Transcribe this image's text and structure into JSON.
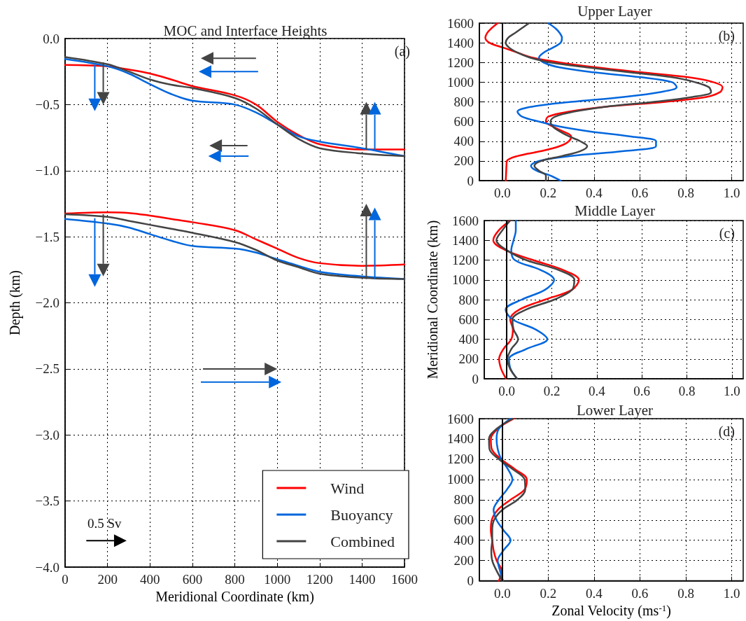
{
  "chart_data": [
    {
      "type": "line",
      "title": "MOC and Interface Heights",
      "xlabel": "Meridional Coordinate (km)",
      "ylabel": "Depth (km)",
      "annotations": [
        "(a)",
        "0.5 Sv"
      ],
      "x": [
        0,
        200,
        300,
        400,
        500,
        600,
        800,
        900,
        1000,
        1100,
        1200,
        1400,
        1600
      ],
      "series": [
        {
          "name": "Wind",
          "color": "#ff0000",
          "values": [
            -0.2,
            -0.21,
            -0.235,
            -0.265,
            -0.31,
            -0.36,
            -0.43,
            -0.5,
            -0.63,
            -0.73,
            -0.8,
            -0.84,
            -0.84
          ]
        },
        {
          "name": "Buoyancy",
          "color": "#0066dd",
          "values": [
            -0.155,
            -0.21,
            -0.265,
            -0.345,
            -0.42,
            -0.47,
            -0.5,
            -0.56,
            -0.65,
            -0.74,
            -0.78,
            -0.83,
            -0.89
          ]
        },
        {
          "name": "Combined",
          "color": "#444444",
          "values": [
            -0.14,
            -0.195,
            -0.25,
            -0.31,
            -0.35,
            -0.375,
            -0.45,
            -0.53,
            -0.65,
            -0.76,
            -0.83,
            -0.87,
            -0.89
          ]
        },
        {
          "color": "#ff0000",
          "values": [
            -1.325,
            -1.315,
            -1.32,
            -1.34,
            -1.365,
            -1.39,
            -1.45,
            -1.52,
            -1.59,
            -1.66,
            -1.7,
            -1.72,
            -1.71
          ]
        },
        {
          "color": "#0066dd",
          "values": [
            -1.365,
            -1.4,
            -1.43,
            -1.48,
            -1.53,
            -1.57,
            -1.59,
            -1.62,
            -1.67,
            -1.72,
            -1.765,
            -1.8,
            -1.82
          ]
        },
        {
          "color": "#444444",
          "values": [
            -1.33,
            -1.35,
            -1.38,
            -1.41,
            -1.44,
            -1.47,
            -1.54,
            -1.6,
            -1.68,
            -1.73,
            -1.78,
            -1.81,
            -1.82
          ]
        }
      ],
      "xlim": [
        0,
        1600
      ],
      "xticks": [
        0,
        200,
        400,
        600,
        800,
        1000,
        1200,
        1400,
        1600
      ],
      "ylim": [
        -4,
        0
      ],
      "yticks": [
        {
          "value": -4,
          "label": "−4.0"
        },
        {
          "value": -3.5,
          "label": "−3.5"
        },
        {
          "value": -3,
          "label": "−3.0"
        },
        {
          "value": -2.5,
          "label": "−2.5"
        },
        {
          "value": -2,
          "label": "−2.0"
        },
        {
          "value": -1.5,
          "label": "−1.5"
        },
        {
          "value": -1,
          "label": "−1.0"
        },
        {
          "value": -0.5,
          "label": "−0.5"
        },
        {
          "value": 0,
          "label": "0.0"
        }
      ],
      "grid": true,
      "legend": "bottom right",
      "marker": "none",
      "line_style": "solid"
    },
    {
      "type": "line",
      "title": "Upper Layer",
      "annotations": [
        "(b)"
      ],
      "series": [
        {
          "color": "#ff0000",
          "x": [
            0.015,
            0.016,
            0.017,
            0.018,
            0.02,
            0.066,
            0.17,
            0.25,
            0.29,
            0.3,
            0.264,
            0.22,
            0.19,
            0.2,
            0.29,
            0.45,
            0.71,
            0.89,
            0.95,
            0.96,
            0.92,
            0.81,
            0.605,
            0.41,
            0.25,
            0.13,
            0.066,
            0.005,
            -0.056,
            -0.074,
            -0.066,
            -0.046,
            -0.02
          ],
          "values": [
            0,
            50,
            100,
            150,
            200,
            250,
            300,
            350,
            400,
            450,
            500,
            550,
            600,
            650,
            700,
            750,
            800,
            850,
            900,
            950,
            1000,
            1050,
            1100,
            1150,
            1200,
            1250,
            1300,
            1350,
            1400,
            1450,
            1500,
            1550,
            1600
          ]
        },
        {
          "color": "#0066dd",
          "x": [
            0.254,
            0.21,
            0.15,
            0.125,
            0.16,
            0.3,
            0.53,
            0.67,
            0.67,
            0.555,
            0.38,
            0.25,
            0.16,
            0.086,
            0.066,
            0.127,
            0.3,
            0.53,
            0.69,
            0.76,
            0.74,
            0.605,
            0.4,
            0.25,
            0.18,
            0.16,
            0.18,
            0.22,
            0.254,
            0.26,
            0.25,
            0.23,
            0.2
          ],
          "values": [
            0,
            50,
            100,
            150,
            200,
            250,
            300,
            350,
            400,
            450,
            500,
            550,
            600,
            650,
            700,
            750,
            800,
            850,
            900,
            950,
            1000,
            1050,
            1100,
            1150,
            1200,
            1250,
            1300,
            1350,
            1400,
            1450,
            1500,
            1550,
            1600
          ]
        },
        {
          "color": "#444444",
          "x": [
            0.19,
            0.19,
            0.16,
            0.14,
            0.17,
            0.26,
            0.34,
            0.37,
            0.34,
            0.29,
            0.25,
            0.22,
            0.21,
            0.23,
            0.31,
            0.45,
            0.66,
            0.83,
            0.91,
            0.9,
            0.84,
            0.74,
            0.555,
            0.37,
            0.21,
            0.12,
            0.066,
            0.03,
            0.015,
            0.025,
            0.056,
            0.086,
            0.117
          ],
          "values": [
            0,
            50,
            100,
            150,
            200,
            250,
            300,
            350,
            400,
            450,
            500,
            550,
            600,
            650,
            700,
            750,
            800,
            850,
            900,
            950,
            1000,
            1050,
            1100,
            1150,
            1200,
            1250,
            1300,
            1350,
            1400,
            1450,
            1500,
            1550,
            1600
          ]
        }
      ],
      "xlim": [
        -0.1,
        1.05
      ],
      "xticks": [
        {
          "value": 0,
          "label": "0.0"
        },
        {
          "value": 0.2,
          "label": "0.2"
        },
        {
          "value": 0.4,
          "label": "0.4"
        },
        {
          "value": 0.6,
          "label": "0.6"
        },
        {
          "value": 0.8,
          "label": "0.8"
        },
        {
          "value": 1,
          "label": "1.0"
        }
      ],
      "ylim": [
        0,
        1600
      ],
      "yticks": [
        0,
        200,
        400,
        600,
        800,
        1000,
        1200,
        1400,
        1600
      ],
      "ref_lines": [
        {
          "axis": "x",
          "value": 0,
          "color": "#000000"
        }
      ],
      "grid": true,
      "marker": "none",
      "line_style": "solid"
    },
    {
      "type": "line",
      "title": "Middle Layer",
      "ylabel": "Meridional Coordinate (km)",
      "annotations": [
        "(c)"
      ],
      "series": [
        {
          "color": "#ff0000",
          "x": [
            -0.003,
            -0.025,
            -0.034,
            -0.015,
            0.02,
            0.027,
            0.015,
            0.056,
            0.17,
            0.29,
            0.32,
            0.25,
            0.117,
            -0.005,
            -0.06,
            -0.036,
            0.015
          ],
          "values": [
            0,
            100,
            200,
            300,
            400,
            500,
            600,
            700,
            800,
            900,
            1000,
            1100,
            1200,
            1300,
            1400,
            1500,
            1600
          ]
        },
        {
          "color": "#0066dd",
          "x": [
            0.046,
            0.017,
            0.01,
            0.086,
            0.18,
            0.127,
            0.025,
            -0.005,
            0.066,
            0.17,
            0.21,
            0.15,
            0.036,
            0.02,
            0.03,
            0.04,
            0.04
          ],
          "values": [
            0,
            100,
            200,
            300,
            400,
            500,
            600,
            700,
            800,
            900,
            1000,
            1100,
            1200,
            1300,
            1400,
            1500,
            1600
          ]
        },
        {
          "color": "#444444",
          "x": [
            0.046,
            0.015,
            0.003,
            0.02,
            0.05,
            0.03,
            0.025,
            0.086,
            0.21,
            0.29,
            0.3,
            0.23,
            0.086,
            0,
            -0.046,
            -0.02,
            0.015
          ],
          "values": [
            0,
            100,
            200,
            300,
            400,
            500,
            600,
            700,
            800,
            900,
            1000,
            1100,
            1200,
            1300,
            1400,
            1500,
            1600
          ]
        }
      ],
      "xlim": [
        -0.1,
        1.05
      ],
      "xticks": [
        {
          "value": 0,
          "label": "0.0"
        },
        {
          "value": 0.2,
          "label": "0.2"
        },
        {
          "value": 0.4,
          "label": "0.4"
        },
        {
          "value": 0.6,
          "label": "0.6"
        },
        {
          "value": 0.8,
          "label": "0.8"
        },
        {
          "value": 1,
          "label": "1.0"
        }
      ],
      "ylim": [
        0,
        1600
      ],
      "yticks": [
        0,
        200,
        400,
        600,
        800,
        1000,
        1200,
        1400,
        1600
      ],
      "ref_lines": [
        {
          "axis": "x",
          "value": 0,
          "color": "#000000"
        }
      ],
      "grid": true,
      "marker": "none",
      "line_style": "solid"
    },
    {
      "type": "line",
      "title": "Lower Layer",
      "xlabel": "Zonal Velocity (ms$^{-1}$)",
      "annotations": [
        "(d)"
      ],
      "series": [
        {
          "color": "#ff0000",
          "x": [
            -0.015,
            -0.003,
            -0.025,
            -0.038,
            -0.044,
            -0.05,
            -0.046,
            -0.02,
            0.036,
            0.097,
            0.107,
            0.056,
            -0.005,
            -0.046,
            -0.05,
            -0.02,
            0.05
          ],
          "values": [
            0,
            100,
            200,
            300,
            400,
            500,
            600,
            700,
            800,
            900,
            1000,
            1100,
            1200,
            1300,
            1400,
            1500,
            1600
          ]
        },
        {
          "color": "#0066dd",
          "x": [
            0.003,
            -0.01,
            -0.02,
            0.005,
            0.036,
            0.005,
            -0.025,
            -0.038,
            -0.015,
            0.02,
            0.044,
            0.025,
            -0.005,
            -0.02,
            -0.025,
            -0.015,
            0.036
          ],
          "values": [
            0,
            100,
            200,
            300,
            400,
            500,
            600,
            700,
            800,
            900,
            1000,
            1100,
            1200,
            1300,
            1400,
            1500,
            1600
          ]
        },
        {
          "color": "#444444",
          "x": [
            0,
            -0.025,
            -0.044,
            -0.048,
            -0.044,
            -0.044,
            -0.036,
            0,
            0.066,
            0.1,
            0.097,
            0.046,
            -0.015,
            -0.056,
            -0.058,
            -0.025,
            0.046
          ],
          "values": [
            0,
            100,
            200,
            300,
            400,
            500,
            600,
            700,
            800,
            900,
            1000,
            1100,
            1200,
            1300,
            1400,
            1500,
            1600
          ]
        }
      ],
      "xlim": [
        -0.1,
        1.05
      ],
      "xticks": [
        {
          "value": 0,
          "label": "0.0"
        },
        {
          "value": 0.2,
          "label": "0.2"
        },
        {
          "value": 0.4,
          "label": "0.4"
        },
        {
          "value": 0.6,
          "label": "0.6"
        },
        {
          "value": 0.8,
          "label": "0.8"
        },
        {
          "value": 1,
          "label": "1.0"
        }
      ],
      "ylim": [
        0,
        1600
      ],
      "yticks": [
        0,
        200,
        400,
        600,
        800,
        1000,
        1200,
        1400,
        1600
      ],
      "ref_lines": [
        {
          "axis": "x",
          "value": 0,
          "color": "#000000"
        }
      ],
      "grid": true,
      "marker": "none",
      "line_style": "solid"
    }
  ]
}
